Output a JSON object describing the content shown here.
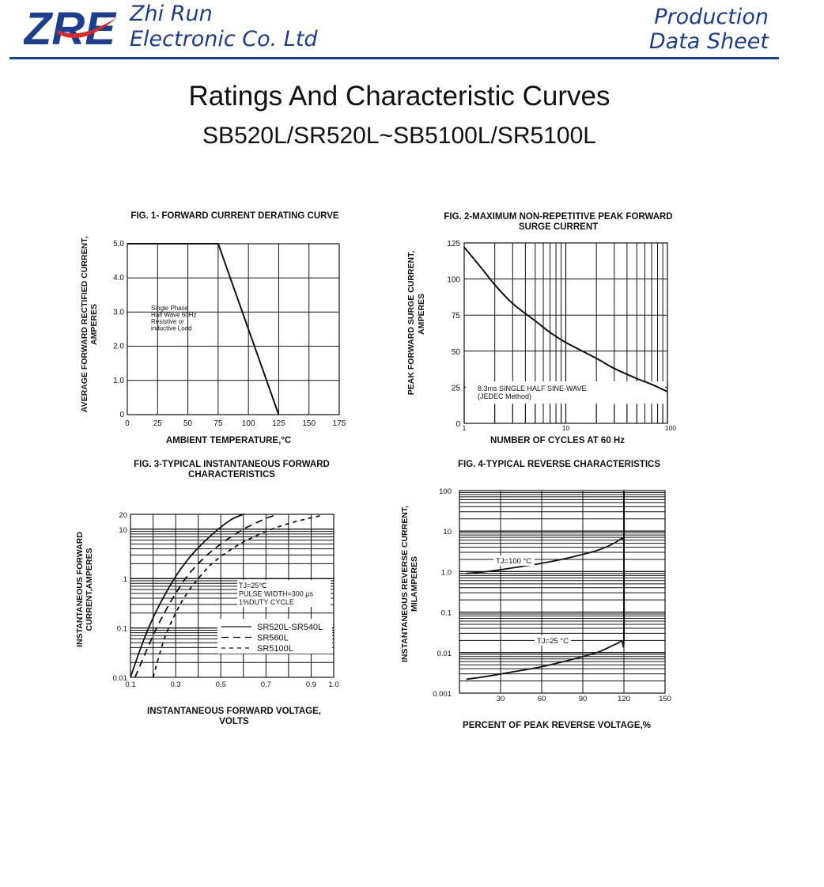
{
  "header": {
    "logo_text": "ZRE",
    "company_line1": "Zhi Run",
    "company_line2": "Electronic Co. Ltd",
    "doc_line1": "Production",
    "doc_line2": "Data Sheet",
    "colors": {
      "brand_blue": "#1b3e8f",
      "brand_red": "#d62a2a"
    }
  },
  "page": {
    "title": "Ratings And  Characteristic Curves",
    "subtitle": "SB520L/SR520L~SB5100L/SR5100L"
  },
  "chart_data": [
    {
      "type": "line",
      "title": "FIG. 1- FORWARD CURRENT DERATING CURVE",
      "xlabel": "AMBIENT TEMPERATURE,°C",
      "ylabel": "AVERAGE FORWARD RECTIFIED CURRENT,",
      "ylabel2": "AMPERES",
      "xlim": [
        0,
        175
      ],
      "ylim": [
        0,
        5
      ],
      "x_ticks": [
        "0",
        "25",
        "50",
        "75",
        "100",
        "125",
        "150",
        "175"
      ],
      "y_ticks": [
        "0",
        "1.0",
        "2.0",
        "3.0",
        "4.0",
        "5.0"
      ],
      "grid": true,
      "annotation": [
        "Single Phase",
        "Half Wave 60Hz",
        "Resistive or",
        "inductive Load"
      ],
      "series": [
        {
          "x": [
            0,
            75,
            125
          ],
          "y": [
            5,
            5,
            0
          ]
        }
      ]
    },
    {
      "type": "line",
      "title": "FIG. 2-MAXIMUM NON-REPETITIVE PEAK FORWARD",
      "title2": "SURGE CURRENT",
      "xlabel": "NUMBER OF CYCLES AT 60 Hz",
      "ylabel": "PEAK  FORWARD SURGE CURRENT,",
      "ylabel2": "AMPERES",
      "xscale": "log",
      "xlim": [
        1,
        100
      ],
      "ylim": [
        0,
        125
      ],
      "x_ticks": [
        "1",
        "10",
        "100"
      ],
      "y_ticks": [
        "0",
        "25",
        "50",
        "75",
        "100",
        "125"
      ],
      "grid": true,
      "annotation": [
        "8.3ms SINGLE HALF SINE-WAVE",
        "(JEDEC Method)"
      ],
      "series": [
        {
          "x": [
            1,
            1.5,
            2,
            3,
            5,
            7,
            10,
            20,
            30,
            50,
            70,
            100
          ],
          "y": [
            122,
            107,
            96,
            83,
            71,
            63,
            56,
            45,
            38,
            31,
            27,
            22
          ]
        }
      ]
    },
    {
      "type": "line",
      "title": "FIG. 3-TYPICAL INSTANTANEOUS FORWARD",
      "title2": "CHARACTERISTICS",
      "xlabel": "INSTANTANEOUS FORWARD VOLTAGE,",
      "xlabel2": "VOLTS",
      "ylabel": "INSTANTANEOUS FORWARD",
      "ylabel2": "CURRENT,AMPERES",
      "yscale": "log",
      "xlim": [
        0.1,
        1.0
      ],
      "ylim": [
        0.01,
        20
      ],
      "x_ticks": [
        0.1,
        0.3,
        0.5,
        0.7,
        0.9,
        1.0
      ],
      "x_tick_labels": [
        "0.1",
        "0.3",
        "0.5",
        "0.7",
        "0.9",
        "1.0"
      ],
      "y_ticks": [
        0.01,
        0.1,
        1,
        10,
        20
      ],
      "y_tick_labels": [
        "0.01",
        "0.1",
        "1",
        "10",
        "20"
      ],
      "grid": true,
      "annotation": [
        "TJ=25℃",
        "PULSE WIDTH=300 μs",
        "1%DUTY CYCLE"
      ],
      "legend_position": "bottom-right",
      "series": [
        {
          "name": "SR520L-SR540L",
          "dash": "solid",
          "x": [
            0.1,
            0.15,
            0.2,
            0.25,
            0.3,
            0.35,
            0.4,
            0.45,
            0.5,
            0.55,
            0.6
          ],
          "y": [
            0.01,
            0.045,
            0.16,
            0.45,
            1.1,
            2.3,
            4.2,
            7.0,
            11,
            16,
            20
          ]
        },
        {
          "name": "SR560L",
          "dash": "long",
          "x": [
            0.12,
            0.2,
            0.25,
            0.3,
            0.35,
            0.4,
            0.45,
            0.5,
            0.55,
            0.6,
            0.65,
            0.7,
            0.75
          ],
          "y": [
            0.01,
            0.07,
            0.2,
            0.5,
            1.1,
            2.0,
            3.3,
            5.0,
            7.2,
            10,
            13,
            16.5,
            20
          ]
        },
        {
          "name": "SR5100L",
          "dash": "short",
          "x": [
            0.2,
            0.25,
            0.3,
            0.35,
            0.4,
            0.45,
            0.5,
            0.55,
            0.6,
            0.7,
            0.8,
            0.9,
            0.95
          ],
          "y": [
            0.01,
            0.06,
            0.2,
            0.5,
            1.0,
            1.8,
            2.8,
            4.0,
            5.5,
            9.0,
            13,
            17,
            19
          ]
        }
      ]
    },
    {
      "type": "line",
      "title": "FIG. 4-TYPICAL REVERSE CHARACTERISTICS",
      "xlabel": "PERCENT OF PEAK REVERSE VOLTAGE,%",
      "ylabel": "INSTANTANEOUS REVERSE CURRENT,",
      "ylabel2": "MILAMPERES",
      "yscale": "log",
      "xlim": [
        0,
        150
      ],
      "ylim": [
        0.001,
        100
      ],
      "x_ticks": [
        30,
        60,
        90,
        120,
        150
      ],
      "x_tick_labels": [
        "30",
        "60",
        "90",
        "120",
        "150"
      ],
      "y_ticks": [
        0.001,
        0.01,
        0.1,
        1,
        10,
        100
      ],
      "y_tick_labels": [
        "0.001",
        "0.01",
        "0.1",
        "1.0",
        "10",
        "100"
      ],
      "grid": true,
      "series": [
        {
          "name": "TJ=100 °C",
          "x": [
            5,
            20,
            40,
            60,
            80,
            100,
            110,
            118,
            120,
            120
          ],
          "y": [
            0.9,
            1.0,
            1.25,
            1.6,
            2.2,
            3.3,
            4.5,
            6.5,
            8,
            100
          ]
        },
        {
          "name": "TJ=25 °C",
          "x": [
            5,
            20,
            40,
            60,
            80,
            100,
            110,
            118,
            120,
            120
          ],
          "y": [
            0.0022,
            0.0026,
            0.0034,
            0.0045,
            0.0065,
            0.01,
            0.014,
            0.019,
            0.022,
            8
          ]
        }
      ]
    }
  ]
}
